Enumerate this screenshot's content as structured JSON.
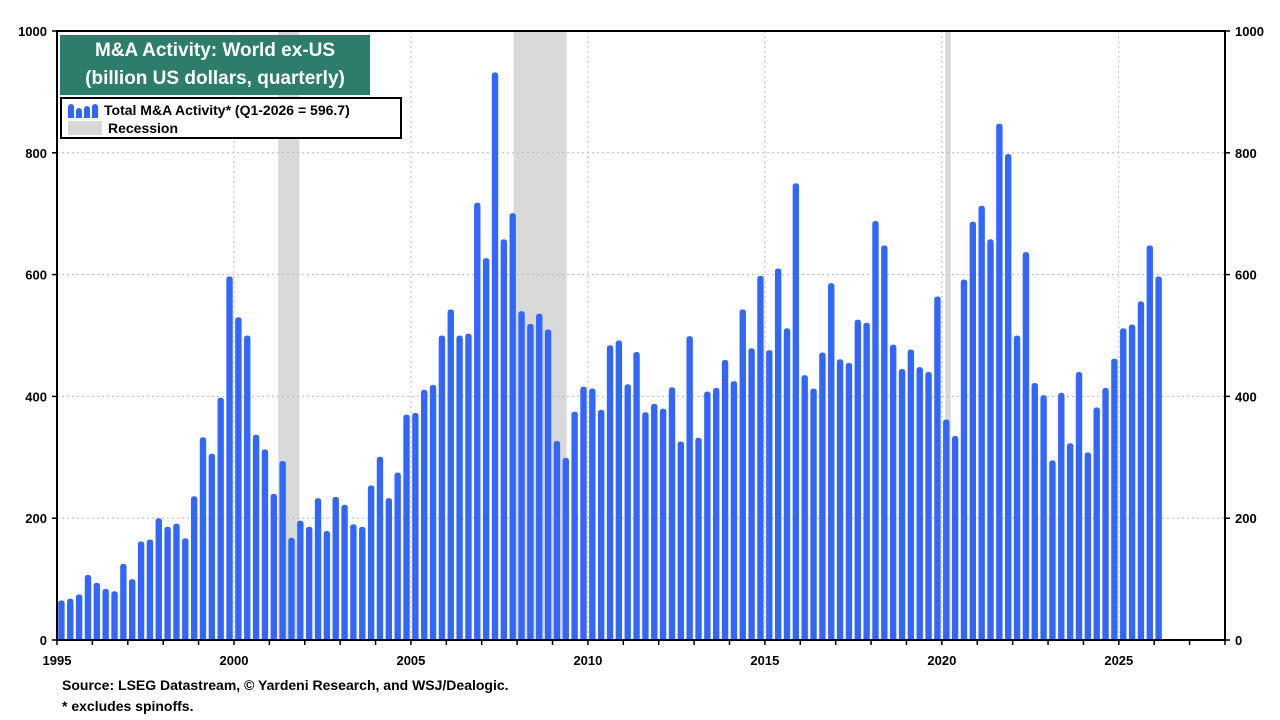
{
  "chart_data": {
    "type": "bar",
    "title": "M&A Activity: World ex-US",
    "subtitle": "(billion US dollars, quarterly)",
    "legend": {
      "series_label": "Total M&A Activity* (Q1-2026 = 596.7)",
      "recession_label": "Recession",
      "placement": "top-left"
    },
    "ylim": [
      0,
      1000
    ],
    "yticks": [
      0,
      200,
      400,
      600,
      800,
      1000
    ],
    "xlim": [
      1995,
      2028
    ],
    "xticks": [
      1995,
      2000,
      2005,
      2010,
      2015,
      2020,
      2025
    ],
    "grid": true,
    "colors": {
      "bar": "#3366ff",
      "recession": "#d9d9d9",
      "title_bg": "#2e7d6b"
    },
    "recessions": [
      [
        2001.25,
        2001.85
      ],
      [
        2007.9,
        2009.4
      ],
      [
        2020.1,
        2020.25
      ]
    ],
    "series": [
      {
        "name": "Total M&A Activity",
        "start_quarter": "1995-Q1",
        "values": [
          65,
          68,
          75,
          107,
          94,
          84,
          80,
          125,
          100,
          162,
          165,
          200,
          186,
          191,
          167,
          236,
          333,
          306,
          398,
          597,
          530,
          500,
          337,
          313,
          240,
          294,
          168,
          196,
          186,
          233,
          179,
          235,
          222,
          190,
          186,
          254,
          301,
          233,
          275,
          370,
          373,
          411,
          419,
          500,
          543,
          500,
          503,
          718,
          627,
          932,
          658,
          701,
          540,
          519,
          536,
          510,
          327,
          299,
          375,
          416,
          413,
          378,
          484,
          492,
          420,
          473,
          374,
          388,
          380,
          415,
          326,
          499,
          332,
          408,
          414,
          460,
          425,
          543,
          479,
          598,
          476,
          610,
          512,
          750,
          435,
          413,
          472,
          586,
          461,
          455,
          526,
          521,
          688,
          648,
          485,
          445,
          477,
          448,
          440,
          564,
          362,
          335,
          592,
          687,
          713,
          658,
          848,
          798,
          500,
          637,
          422,
          402,
          295,
          406,
          323,
          440,
          308,
          382,
          414,
          462,
          512,
          518,
          556,
          648,
          597
        ]
      }
    ]
  },
  "footer": {
    "source": "Source: LSEG Datastream, © Yardeni Research, and WSJ/Dealogic.",
    "note": "* excludes spinoffs."
  }
}
